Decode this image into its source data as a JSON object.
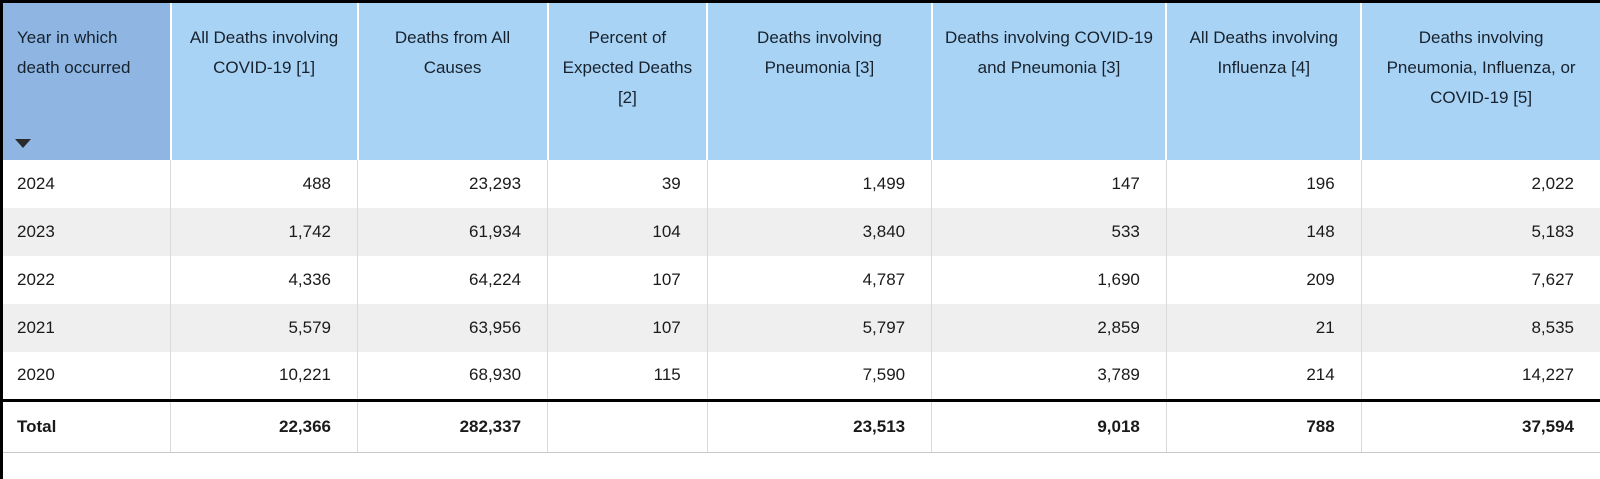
{
  "colors": {
    "header_bg": "#a9d3f4",
    "year_header_bg": "#8fb6e3",
    "alt_row_bg": "#efefef",
    "separator": "#d9d9d9",
    "border": "#000000"
  },
  "table": {
    "columns": [
      {
        "label": "Year in which death occurred",
        "sortable": true,
        "sort_icon": "triangle-down"
      },
      {
        "label": "All Deaths involving COVID-19 [1]"
      },
      {
        "label": "Deaths from All Causes"
      },
      {
        "label": "Percent of Expected Deaths [2]"
      },
      {
        "label": "Deaths involving Pneumonia [3]"
      },
      {
        "label": "Deaths involving COVID-19 and Pneumonia [3]"
      },
      {
        "label": "All Deaths involving Influenza [4]"
      },
      {
        "label": "Deaths involving Pneumonia, Influenza, or COVID-19 [5]"
      }
    ],
    "rows": [
      {
        "year": "2024",
        "values": [
          "488",
          "23,293",
          "39",
          "1,499",
          "147",
          "196",
          "2,022"
        ]
      },
      {
        "year": "2023",
        "values": [
          "1,742",
          "61,934",
          "104",
          "3,840",
          "533",
          "148",
          "5,183"
        ]
      },
      {
        "year": "2022",
        "values": [
          "4,336",
          "64,224",
          "107",
          "4,787",
          "1,690",
          "209",
          "7,627"
        ]
      },
      {
        "year": "2021",
        "values": [
          "5,579",
          "63,956",
          "107",
          "5,797",
          "2,859",
          "21",
          "8,535"
        ]
      },
      {
        "year": "2020",
        "values": [
          "10,221",
          "68,930",
          "115",
          "7,590",
          "3,789",
          "214",
          "14,227"
        ]
      }
    ],
    "total": {
      "label": "Total",
      "values": [
        "22,366",
        "282,337",
        "",
        "23,513",
        "9,018",
        "788",
        "37,594"
      ]
    }
  }
}
